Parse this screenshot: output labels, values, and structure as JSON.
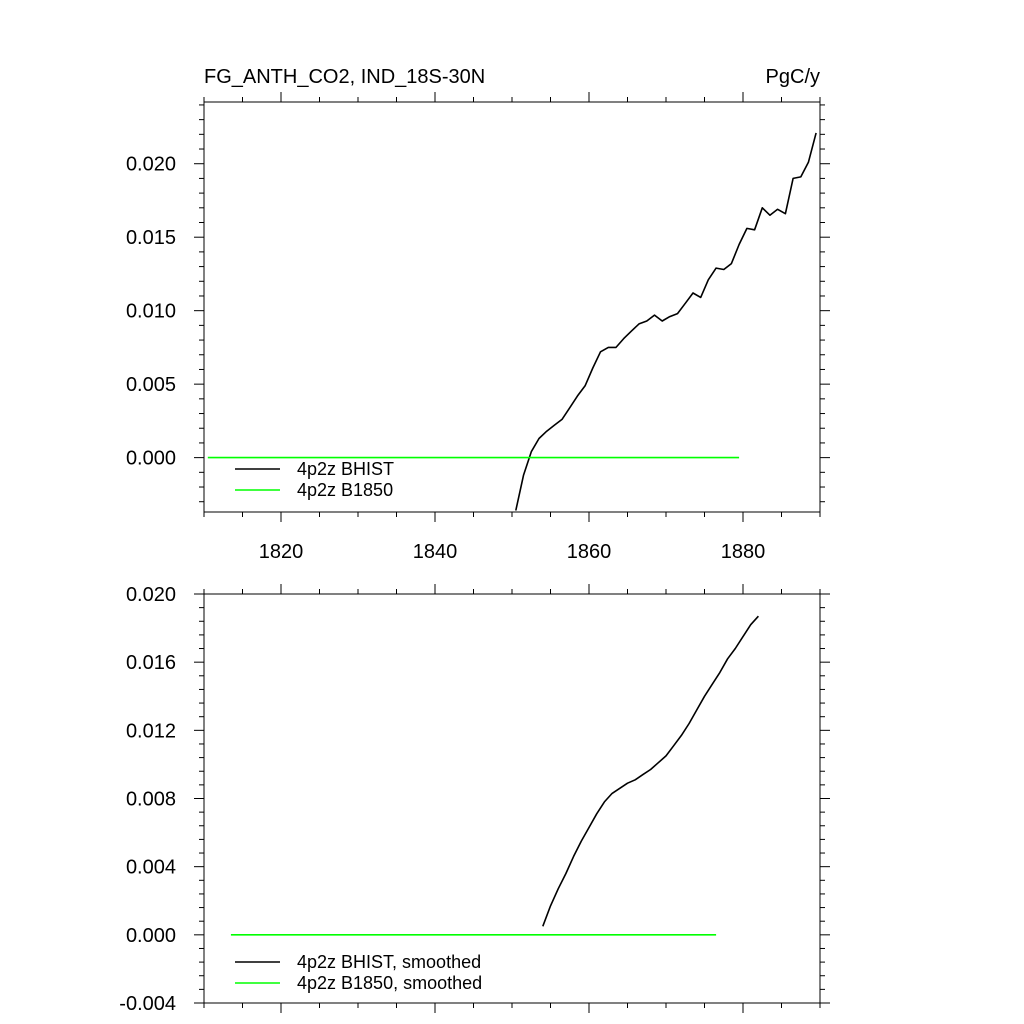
{
  "chart_data": [
    {
      "type": "line",
      "title": "FG_ANTH_CO2, IND_18S-30N",
      "units": "PgC/y",
      "xlim": [
        1810,
        1890
      ],
      "ylim": [
        -0.0037,
        0.0242
      ],
      "x_ticks": [
        1820,
        1840,
        1860,
        1880
      ],
      "y_ticks": [
        0.0,
        0.005,
        0.01,
        0.015,
        0.02
      ],
      "x_tick_labels": [
        "1820",
        "1840",
        "1860",
        "1880"
      ],
      "y_tick_labels": [
        "0.000",
        "0.005",
        "0.010",
        "0.015",
        "0.020"
      ],
      "legend_position": "bottom-left",
      "series": [
        {
          "name": "4p2z BHIST",
          "color": "#000000",
          "points": [
            [
              1850.5,
              -0.0036
            ],
            [
              1851.5,
              -0.0012
            ],
            [
              1852.5,
              0.0004
            ],
            [
              1853.5,
              0.0013
            ],
            [
              1854.5,
              0.0018
            ],
            [
              1855.5,
              0.0022
            ],
            [
              1856.5,
              0.0026
            ],
            [
              1857.5,
              0.0034
            ],
            [
              1858.5,
              0.0042
            ],
            [
              1859.5,
              0.0049
            ],
            [
              1860.5,
              0.0061
            ],
            [
              1861.5,
              0.0072
            ],
            [
              1862.5,
              0.0075
            ],
            [
              1863.5,
              0.0075
            ],
            [
              1864.5,
              0.0081
            ],
            [
              1865.5,
              0.0086
            ],
            [
              1866.5,
              0.0091
            ],
            [
              1867.5,
              0.0093
            ],
            [
              1868.5,
              0.0097
            ],
            [
              1869.5,
              0.0093
            ],
            [
              1870.5,
              0.0096
            ],
            [
              1871.5,
              0.0098
            ],
            [
              1872.5,
              0.0105
            ],
            [
              1873.5,
              0.0112
            ],
            [
              1874.5,
              0.0109
            ],
            [
              1875.5,
              0.0121
            ],
            [
              1876.5,
              0.0129
            ],
            [
              1877.5,
              0.0128
            ],
            [
              1878.5,
              0.0132
            ],
            [
              1879.5,
              0.0145
            ],
            [
              1880.5,
              0.0156
            ],
            [
              1881.5,
              0.0155
            ],
            [
              1882.5,
              0.017
            ],
            [
              1883.5,
              0.0165
            ],
            [
              1884.5,
              0.0169
            ],
            [
              1885.5,
              0.0166
            ],
            [
              1886.5,
              0.019
            ],
            [
              1887.5,
              0.0191
            ],
            [
              1888.5,
              0.0201
            ],
            [
              1889.5,
              0.0221
            ]
          ]
        },
        {
          "name": "4p2z B1850",
          "color": "#00ff00",
          "points": [
            [
              1810.5,
              0.0
            ],
            [
              1879.5,
              0.0
            ]
          ]
        }
      ]
    },
    {
      "type": "line",
      "title": "",
      "units": "",
      "xlim": [
        1810,
        1890
      ],
      "ylim": [
        -0.004,
        0.02
      ],
      "x_ticks": [
        1820,
        1840,
        1860,
        1880
      ],
      "y_ticks": [
        -0.004,
        0.0,
        0.004,
        0.008,
        0.012,
        0.016,
        0.02
      ],
      "x_tick_labels": [],
      "y_tick_labels": [
        "-0.004",
        "0.000",
        "0.004",
        "0.008",
        "0.012",
        "0.016",
        "0.020"
      ],
      "legend_position": "bottom-left",
      "series": [
        {
          "name": "4p2z BHIST, smoothed",
          "color": "#000000",
          "points": [
            [
              1854,
              0.0005
            ],
            [
              1855,
              0.0017
            ],
            [
              1856,
              0.0027
            ],
            [
              1857,
              0.0036
            ],
            [
              1858,
              0.0046
            ],
            [
              1859,
              0.0055
            ],
            [
              1860,
              0.0063
            ],
            [
              1861,
              0.0071
            ],
            [
              1862,
              0.0078
            ],
            [
              1863,
              0.0083
            ],
            [
              1864,
              0.0086
            ],
            [
              1865,
              0.0089
            ],
            [
              1866,
              0.0091
            ],
            [
              1867,
              0.0094
            ],
            [
              1868,
              0.0097
            ],
            [
              1869,
              0.0101
            ],
            [
              1870,
              0.0105
            ],
            [
              1871,
              0.0111
            ],
            [
              1872,
              0.0117
            ],
            [
              1873,
              0.0124
            ],
            [
              1874,
              0.0132
            ],
            [
              1875,
              0.014
            ],
            [
              1876,
              0.0147
            ],
            [
              1877,
              0.0154
            ],
            [
              1878,
              0.0162
            ],
            [
              1879,
              0.0168
            ],
            [
              1880,
              0.0175
            ],
            [
              1881,
              0.0182
            ],
            [
              1882,
              0.0187
            ]
          ]
        },
        {
          "name": "4p2z B1850, smoothed",
          "color": "#00ff00",
          "points": [
            [
              1813.5,
              0.0
            ],
            [
              1876.5,
              0.0
            ]
          ]
        }
      ]
    }
  ]
}
